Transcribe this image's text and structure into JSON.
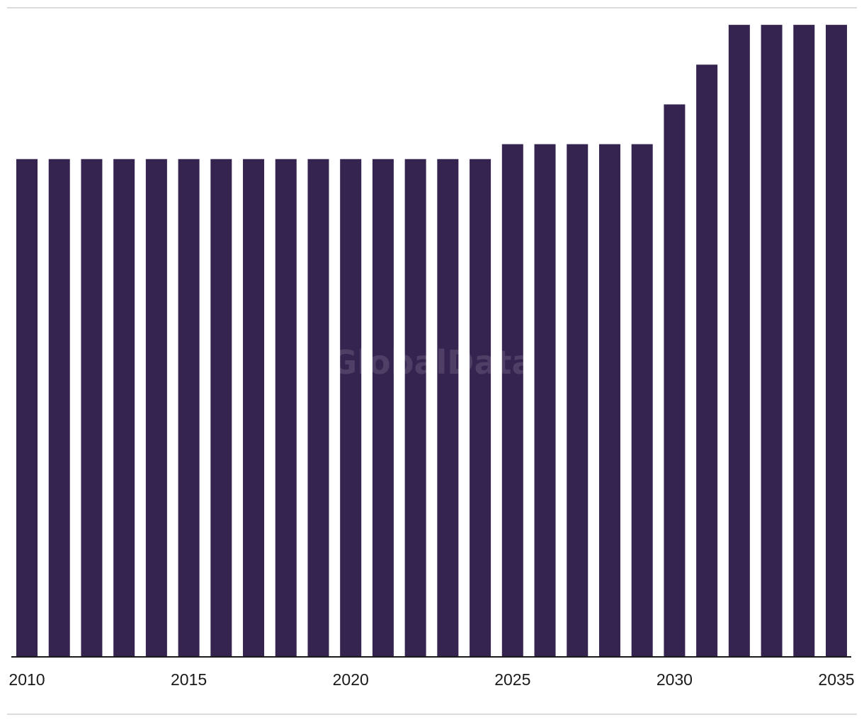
{
  "colors": {
    "bar": "#352350",
    "axis": "#1a1a1a",
    "divider": "#dcdcdc",
    "tick_text": "#1a1a1a"
  },
  "watermark": "GlobalData",
  "chart_data": {
    "type": "bar",
    "title": "",
    "xlabel": "",
    "ylabel": "",
    "categories": [
      "2010",
      "2011",
      "2012",
      "2013",
      "2014",
      "2015",
      "2016",
      "2017",
      "2018",
      "2019",
      "2020",
      "2021",
      "2022",
      "2023",
      "2024",
      "2025",
      "2026",
      "2027",
      "2028",
      "2029",
      "2030",
      "2031",
      "2032",
      "2033",
      "2034",
      "2035"
    ],
    "values": [
      50,
      50,
      50,
      50,
      50,
      50,
      50,
      50,
      50,
      50,
      50,
      50,
      50,
      50,
      50,
      51.5,
      51.5,
      51.5,
      51.5,
      51.5,
      55.5,
      59.5,
      63.5,
      63.5,
      63.5,
      63.5
    ],
    "ylim": [
      0,
      66
    ],
    "grid": false,
    "legend": "none",
    "x_tick_labels": [
      "2010",
      "2015",
      "2020",
      "2025",
      "2030",
      "2035"
    ]
  }
}
